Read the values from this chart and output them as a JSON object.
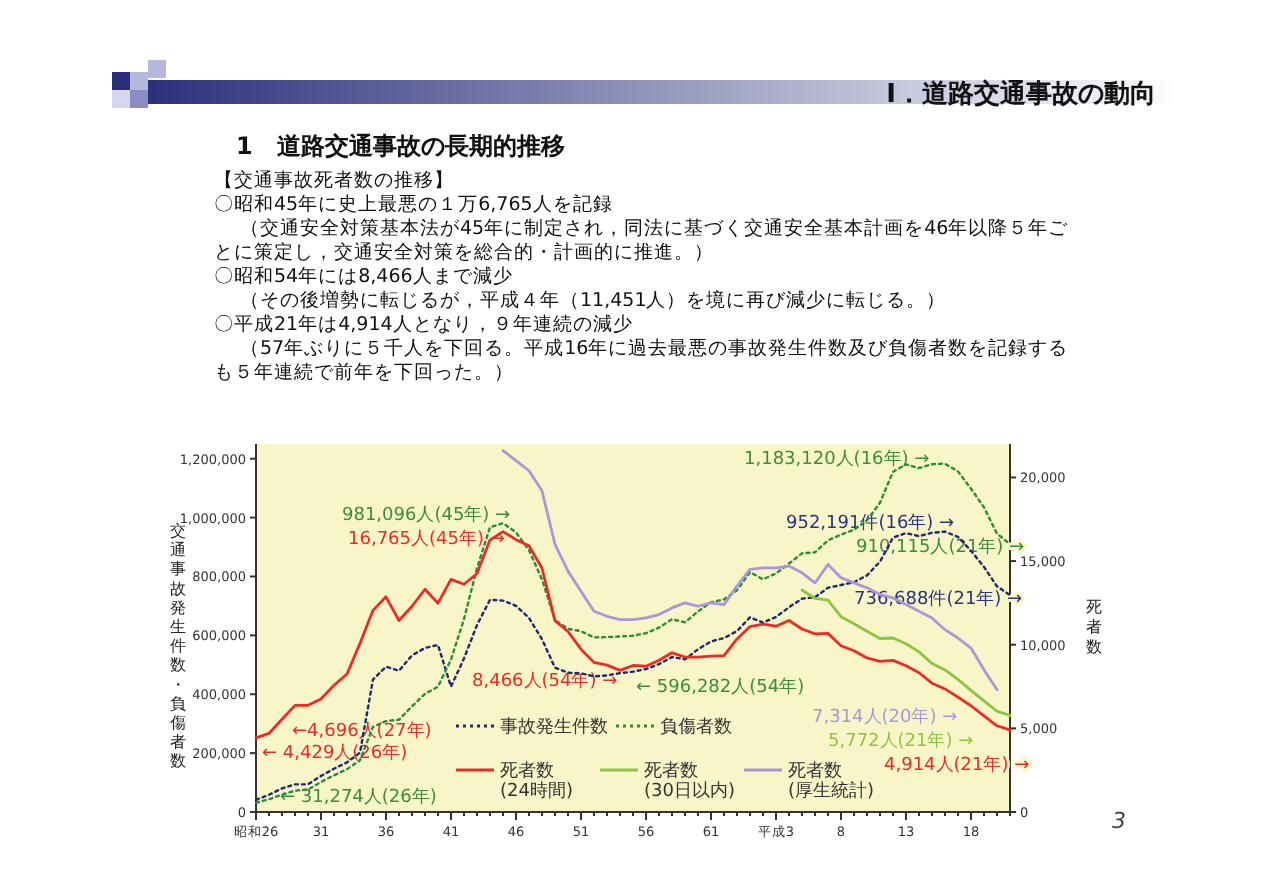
{
  "chart_data": {
    "type": "line",
    "title": "1　道路交通事故の長期的推移",
    "ylabel": "交通事故発生件数・負傷者数",
    "y2label": "死者数",
    "categories": [
      "昭和26",
      null,
      null,
      null,
      null,
      "31",
      null,
      null,
      null,
      null,
      "36",
      null,
      null,
      null,
      null,
      "41",
      null,
      null,
      null,
      null,
      "46",
      null,
      null,
      null,
      null,
      "51",
      null,
      null,
      null,
      null,
      "56",
      null,
      null,
      null,
      null,
      "61",
      null,
      null,
      null,
      null,
      "平成3",
      null,
      null,
      null,
      null,
      "8",
      null,
      null,
      null,
      null,
      "13",
      null,
      null,
      null,
      null,
      "18",
      null,
      null,
      null
    ],
    "ylim": [
      0,
      1250000
    ],
    "yticks": [
      0,
      {
        "value": 200000,
        "label": "200,000"
      },
      {
        "value": 400000,
        "label": "400,000"
      },
      {
        "value": 600000,
        "label": "600,000"
      },
      {
        "value": 800000,
        "label": "800,000"
      },
      {
        "value": 1000000,
        "label": "1,000,000"
      },
      {
        "value": 1200000,
        "label": "1,200,000"
      }
    ],
    "y2lim": [
      0,
      22000
    ],
    "y2ticks": [
      0,
      {
        "value": 5000,
        "label": "5,000"
      },
      {
        "value": 10000,
        "label": "10,000"
      },
      {
        "value": 15000,
        "label": "15,000"
      },
      {
        "value": 20000,
        "label": "20,000"
      }
    ],
    "legend": "bottom",
    "marker": "none",
    "series": [
      {
        "name": "事故発生件数",
        "color": "#1f2a6e",
        "line_style": "dotted",
        "values": [
          41423,
          58487,
          80019,
          93869,
          93981,
          122691,
          146833,
          168799,
          201292,
          449917,
          493693,
          479825,
          531966,
          557183,
          567286,
          425944,
          521481,
          635056,
          720880,
          718080,
          700290,
          659283,
          586713,
          490452,
          472938,
          471041,
          460649,
          464037,
          471573,
          476677,
          485578,
          502261,
          526362,
          518642,
          552788,
          579190,
          590723,
          614481,
          661363,
          643097,
          662392,
          695346,
          724675,
          729461,
          761794,
          771085,
          780401,
          803882,
          850371,
          931950,
          947253,
          936950,
          948281,
          952191,
          934339,
          887267,
          832454,
          766394,
          736688
        ]
      },
      {
        "name": "負傷者数",
        "color": "#2e8b3a",
        "line_style": "dotted",
        "values": [
          31274,
          43321,
          59280,
          72390,
          76501,
          102072,
          124530,
          145432,
          175951,
          289156,
          308697,
          313813,
          359089,
          401117,
          425666,
          517775,
          655377,
          828071,
          967000,
          981096,
          949689,
          889198,
          789948,
          651420,
          622467,
          613957,
          593211,
          594116,
          596282,
          598719,
          607346,
          626192,
          654822,
          644321,
          681346,
          712330,
          722179,
          752845,
          814832,
          790295,
          810245,
          844003,
          878633,
          881723,
          922677,
          942204,
          958925,
          990675,
          1050399,
          1155707,
          1181039,
          1168029,
          1181431,
          1183120,
          1157113,
          1098199,
          1034652,
          945703,
          910115
        ]
      },
      {
        "name": "死者数\n(24時間)",
        "color": "#ee2a24",
        "axis": "y2",
        "line_style": "solid",
        "values": [
          4429,
          4696,
          5544,
          6374,
          6379,
          6751,
          7575,
          8248,
          10079,
          12055,
          12865,
          11445,
          12301,
          13318,
          12484,
          13904,
          13618,
          14256,
          16257,
          16765,
          16278,
          15918,
          14574,
          11432,
          10792,
          9734,
          8945,
          8783,
          8466,
          8760,
          8719,
          9073,
          9520,
          9262,
          9261,
          9317,
          9347,
          10344,
          11086,
          11227,
          11109,
          11451,
          10942,
          10649,
          10679,
          9942,
          9640,
          9211,
          9006,
          9066,
          8747,
          8326,
          7702,
          7358,
          6871,
          6352,
          5744,
          5155,
          4914
        ]
      },
      {
        "name": "死者数\n(30日以内)",
        "color": "#8cc63f",
        "axis": "y2",
        "line_style": "solid",
        "values": [
          null,
          null,
          null,
          null,
          null,
          null,
          null,
          null,
          null,
          null,
          null,
          null,
          null,
          null,
          null,
          null,
          null,
          null,
          null,
          null,
          null,
          null,
          null,
          null,
          null,
          null,
          null,
          null,
          null,
          null,
          null,
          null,
          null,
          null,
          null,
          null,
          null,
          null,
          null,
          null,
          null,
          null,
          13269,
          12768,
          12670,
          11674,
          11254,
          10805,
          10372,
          10403,
          10060,
          9575,
          8877,
          8492,
          7931,
          7272,
          6639,
          6023,
          5772
        ]
      },
      {
        "name": "死者数\n(厚生統計)",
        "color": "#a898d8",
        "axis": "y2",
        "line_style": "solid",
        "values": [
          null,
          null,
          null,
          null,
          null,
          null,
          null,
          null,
          null,
          null,
          null,
          null,
          null,
          null,
          null,
          null,
          null,
          null,
          null,
          21600,
          21000,
          20400,
          19200,
          16000,
          14400,
          13200,
          12000,
          11700,
          11500,
          11500,
          11600,
          11800,
          12200,
          12500,
          12300,
          12500,
          12400,
          13500,
          14500,
          14600,
          14600,
          14700,
          14300,
          13700,
          14800,
          14000,
          13700,
          13400,
          13000,
          12800,
          12400,
          12000,
          11600,
          10900,
          10400,
          9800,
          8500,
          7314,
          null
        ]
      }
    ],
    "annotations": [
      "Ⅰ．道路交通事故の動向",
      "【交通事故死者数の推移】",
      "〇昭和45年に史上最悪の１万6,765人を記録",
      "（交通安全対策基本法が45年に制定され，同法に基づく交通安全基本計画を46年以降５年ご",
      "とに策定し，交通安全対策を総合的・計画的に推進。）",
      "〇昭和54年には8,466人まで減少",
      "（その後増勢に転じるが，平成４年（11,451人）を境に再び減少に転じる。）",
      "〇平成21年は4,914人となり，９年連続の減少",
      "（57年ぶりに５千人を下回る。平成16年に過去最悪の事故発生件数及び負傷者数を記録する",
      "も５年連続で前年を下回った。）",
      "3",
      "981,096人(45年) →",
      "16,765人(45年) →",
      "← 596,282人(54年)",
      "8,466人(54年) →",
      "←4,696人(27年)",
      "← 4,429人(26年)",
      "← 31,274人(26年)",
      "1,183,120人(16年) →",
      "952,191件(16年) →",
      "910,115人(21年) →",
      "736,688件(21年) →",
      "7,314人(20年) →",
      "5,772人(21年) →",
      "4,914人(21年) →"
    ]
  }
}
